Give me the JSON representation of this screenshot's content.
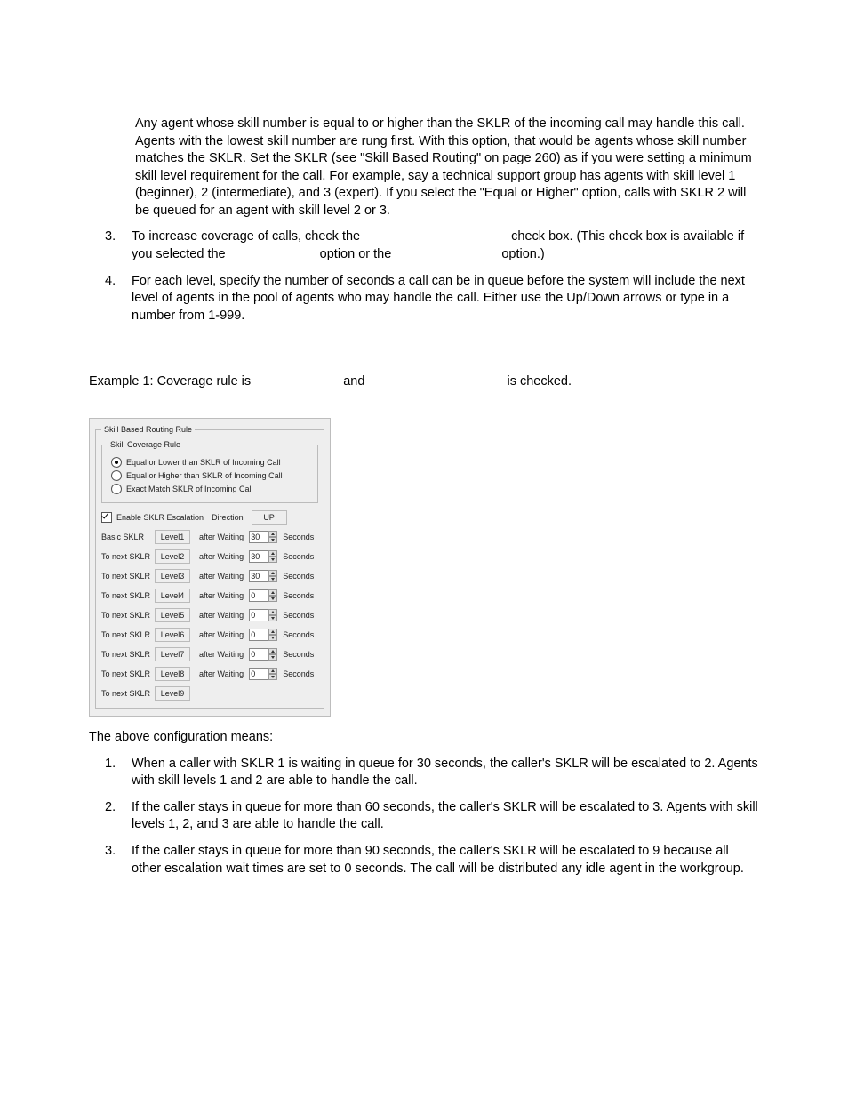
{
  "intro_paragraph": "Any agent whose skill number is equal to or higher than the SKLR of the incoming call may handle this call. Agents with the lowest skill number are rung first. With this option, that would be agents whose skill number matches the SKLR. Set the SKLR (see \"Skill Based Routing\" on page 260) as if you were setting a minimum skill level requirement for the call. For example, say a technical support group has agents with skill level 1 (beginner), 2 (intermediate), and 3 (expert). If you select the \"Equal or Higher\" option, calls with SKLR 2 will be queued for an agent with skill level 2 or 3.",
  "step3": {
    "num": "3.",
    "part1": "To increase coverage of calls, check the",
    "part2": "check box. (This check box is available if you selected the",
    "part3": "option or the",
    "part4": "option.)"
  },
  "step4": {
    "num": "4.",
    "text": "For each level, specify the number of seconds a call can be in queue before the system will include the next level of agents in the pool of agents who may handle the call. Either use the Up/Down arrows or type in a number from 1-999."
  },
  "example_line": {
    "part1": "Example 1: Coverage rule is",
    "part2": "and",
    "part3": "is checked."
  },
  "panel": {
    "outer_legend": "Skill Based Routing Rule",
    "inner_legend": "Skill Coverage Rule",
    "radios": [
      {
        "label": "Equal or Lower than SKLR of Incoming Call",
        "selected": true
      },
      {
        "label": "Equal or Higher than SKLR of Incoming Call",
        "selected": false
      },
      {
        "label": "Exact Match SKLR of Incoming Call",
        "selected": false
      }
    ],
    "enable_label": "Enable SKLR Escalation",
    "direction_label": "Direction",
    "direction_value": "UP",
    "after_waiting": "after Waiting",
    "seconds": "Seconds",
    "rows": [
      {
        "label": "Basic SKLR",
        "level": "Level1",
        "value": "30"
      },
      {
        "label": "To next SKLR",
        "level": "Level2",
        "value": "30"
      },
      {
        "label": "To next SKLR",
        "level": "Level3",
        "value": "30"
      },
      {
        "label": "To next SKLR",
        "level": "Level4",
        "value": "0"
      },
      {
        "label": "To next SKLR",
        "level": "Level5",
        "value": "0"
      },
      {
        "label": "To next SKLR",
        "level": "Level6",
        "value": "0"
      },
      {
        "label": "To next SKLR",
        "level": "Level7",
        "value": "0"
      },
      {
        "label": "To next SKLR",
        "level": "Level8",
        "value": "0"
      },
      {
        "label": "To next SKLR",
        "level": "Level9",
        "value": null
      }
    ]
  },
  "above_config": "The above configuration means:",
  "explain": [
    {
      "num": "1.",
      "text": "When a caller with SKLR 1 is waiting in queue for 30 seconds, the caller's SKLR will be escalated to 2. Agents with skill levels 1 and 2 are able to handle the call."
    },
    {
      "num": "2.",
      "text": "If the caller stays in queue for more than 60 seconds, the caller's SKLR will be escalated to 3. Agents with skill levels 1, 2, and 3 are able to handle the call."
    },
    {
      "num": "3.",
      "text": "If the caller stays in queue for more than 90 seconds, the caller's SKLR will be escalated to 9 because all other escalation wait times are set to 0 seconds. The call will be distributed any idle agent in the work­group."
    }
  ],
  "colors": {
    "panel_bg": "#eeeeee",
    "panel_border": "#bdbdbd",
    "text": "#000000"
  }
}
